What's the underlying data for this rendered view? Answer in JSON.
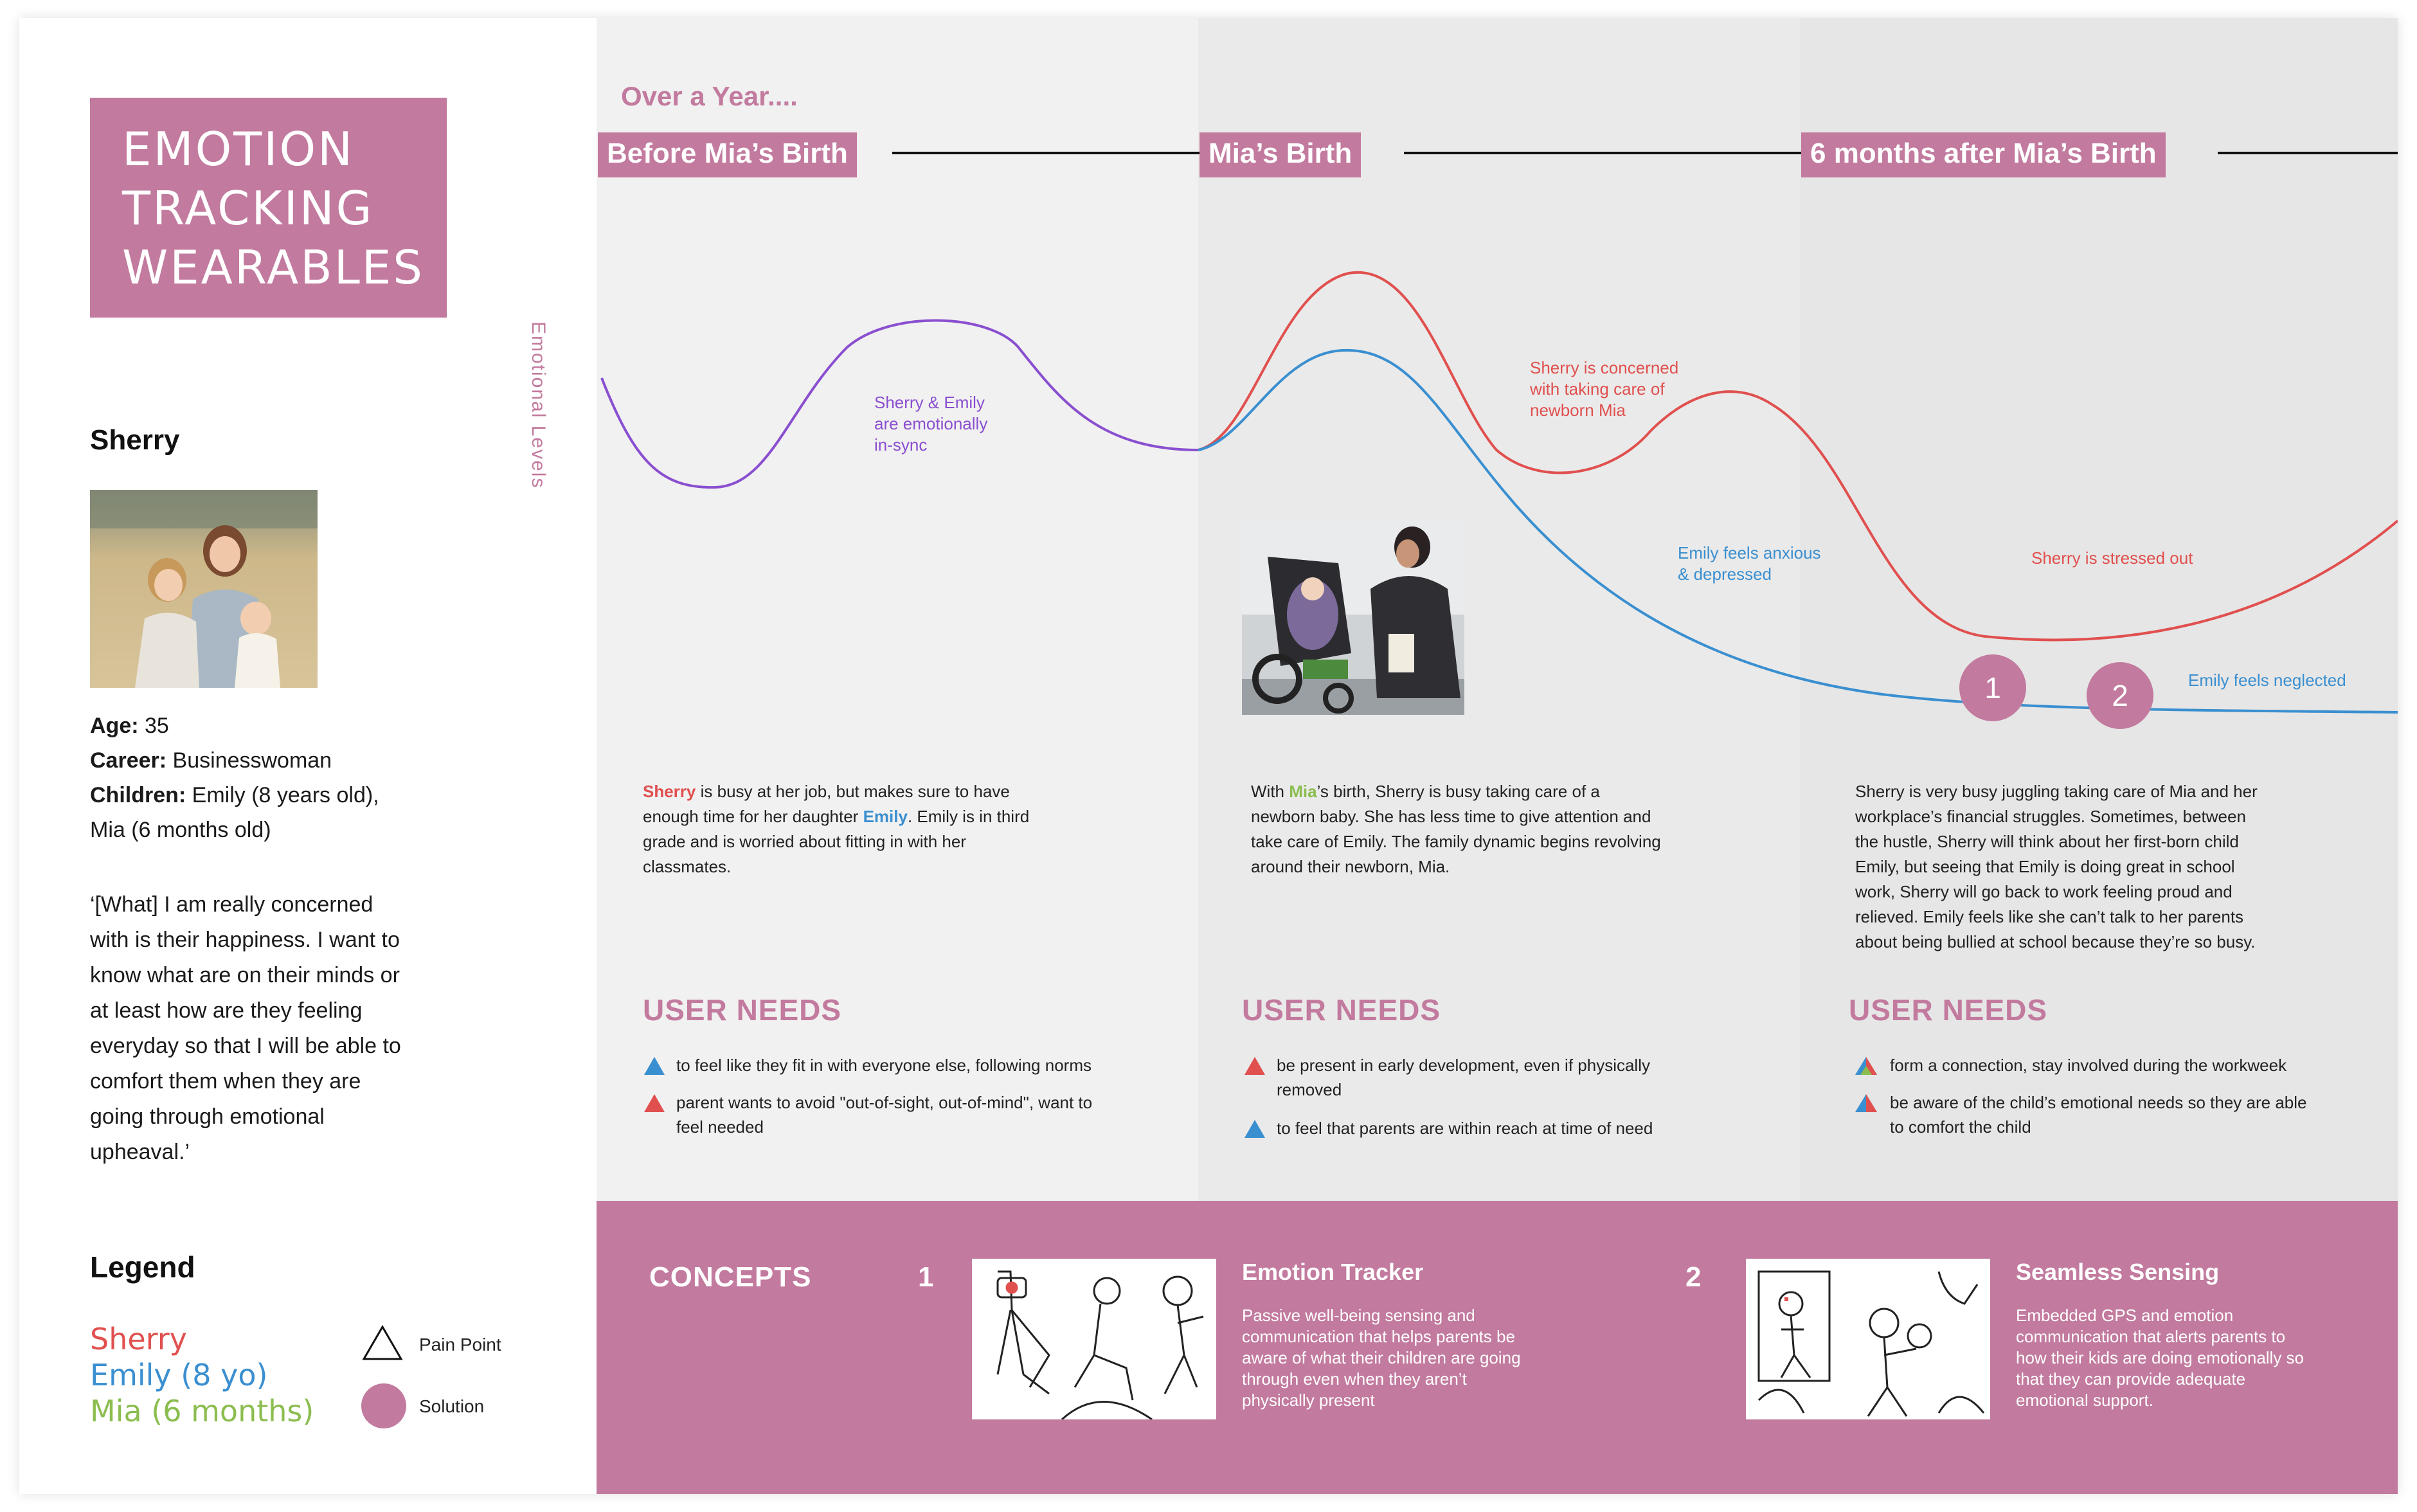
{
  "title": {
    "lines": [
      "EMOTION",
      "TRACKING",
      "WEARABLES"
    ]
  },
  "persona": {
    "name": "Sherry",
    "age_label": "Age:",
    "age_value": " 35",
    "career_label": "Career:",
    "career_value": " Businesswoman",
    "children_label": "Children:",
    "children_value": " Emily (8 years old),",
    "children_value_2": "Mia (6 months old)",
    "quote_lines": [
      "‘[What] I am really concerned",
      "with is their happiness. I want to",
      "know what are on their minds or",
      "at least how are they feeling",
      "everyday so that I will be able to",
      "comfort them when they are",
      "going through emotional",
      "upheaval.’"
    ]
  },
  "legend": {
    "title": "Legend",
    "people": [
      {
        "name": "Sherry",
        "color": "#e0504f"
      },
      {
        "name": "Emily (8 yo)",
        "color": "#3a8fd0"
      },
      {
        "name": "Mia (6 months)",
        "color": "#8bbd4f"
      }
    ],
    "pain_point": "Pain Point",
    "solution": "Solution"
  },
  "axis_label": "Emotional Levels",
  "timeline_label": "Over a Year....",
  "stages": [
    {
      "tag": "Before Mia’s Birth",
      "desc_parts": {
        "sherry": "Sherry",
        "p1": " is busy at her job, but makes sure to have",
        "p2": "enough time for her daughter ",
        "emily": "Emily",
        "p3": ".  Emily is in third",
        "p4": "grade and is worried about fitting in with her",
        "p5": "classmates."
      },
      "needs_title": "USER NEEDS",
      "needs": [
        {
          "lines": [
            "to feel like they fit in with everyone else, following norms"
          ],
          "icon": "blue-triangle"
        },
        {
          "lines": [
            "parent wants to avoid \"out-of-sight, out-of-mind\", want to",
            "feel needed"
          ],
          "icon": "red-triangle"
        }
      ]
    },
    {
      "tag": "Mia’s Birth",
      "desc_parts": {
        "p0": "With ",
        "mia": "Mia",
        "p1": "’s birth, Sherry is busy taking care of a",
        "p2": "newborn baby. She has less time to give attention and",
        "p3": "take care of Emily. The family dynamic begins revolving",
        "p4": "around their newborn, Mia."
      },
      "needs_title": "USER NEEDS",
      "needs": [
        {
          "lines": [
            "be present in early development, even if physically",
            "removed"
          ],
          "icon": "red-triangle"
        },
        {
          "lines": [
            "to feel that parents are within reach at time of need"
          ],
          "icon": "blue-triangle"
        }
      ]
    },
    {
      "tag": "6 months after Mia’s Birth",
      "desc_lines": [
        "Sherry is very busy juggling taking care of Mia and her",
        "workplace’s financial struggles. Sometimes, between",
        "the hustle, Sherry will think about her first-born child",
        "Emily, but seeing that Emily is doing great in school",
        "work, Sherry will go back to work feeling proud and",
        "relieved.  Emily feels like she can’t talk to her parents",
        "about being bullied at school because they’re so busy."
      ],
      "needs_title": "USER NEEDS",
      "needs": [
        {
          "lines": [
            "form a connection, stay involved during the workweek"
          ],
          "icon": "multicolor-triangle"
        },
        {
          "lines": [
            "be aware of the child’s emotional needs so they are able",
            "to comfort the child"
          ],
          "icon": "red-blue-triangle"
        }
      ]
    }
  ],
  "annotations": {
    "in_sync": [
      "Sherry & Emily",
      "are emotionally",
      "in-sync"
    ],
    "sherry_concerned": [
      "Sherry is concerned",
      "with taking care of",
      "newborn Mia"
    ],
    "emily_anxious": [
      "Emily feels anxious",
      "& depressed"
    ],
    "sherry_stressed": [
      "Sherry is stressed out"
    ],
    "emily_neglected": [
      "Emily feels neglected"
    ]
  },
  "solution_markers": [
    "1",
    "2"
  ],
  "concepts": {
    "title": "CONCEPTS",
    "items": [
      {
        "number": "1",
        "name": "Emotion Tracker",
        "desc_lines": [
          "Passive well-being sensing and",
          "communication that helps parents be",
          "aware of what their children are going",
          "through even when they aren’t",
          "physically present"
        ]
      },
      {
        "number": "2",
        "name": "Seamless Sensing",
        "desc_lines": [
          "Embedded GPS and emotion",
          "communication that alerts parents to",
          "how their kids are doing emotionally so",
          "that they can provide adequate",
          "emotional support."
        ]
      }
    ]
  },
  "colors": {
    "accent": "#c27a9e",
    "sherry": "#e0504f",
    "emily": "#3a8fd0",
    "mia": "#8bbd4f",
    "in_sync": "#8a4fd0"
  }
}
